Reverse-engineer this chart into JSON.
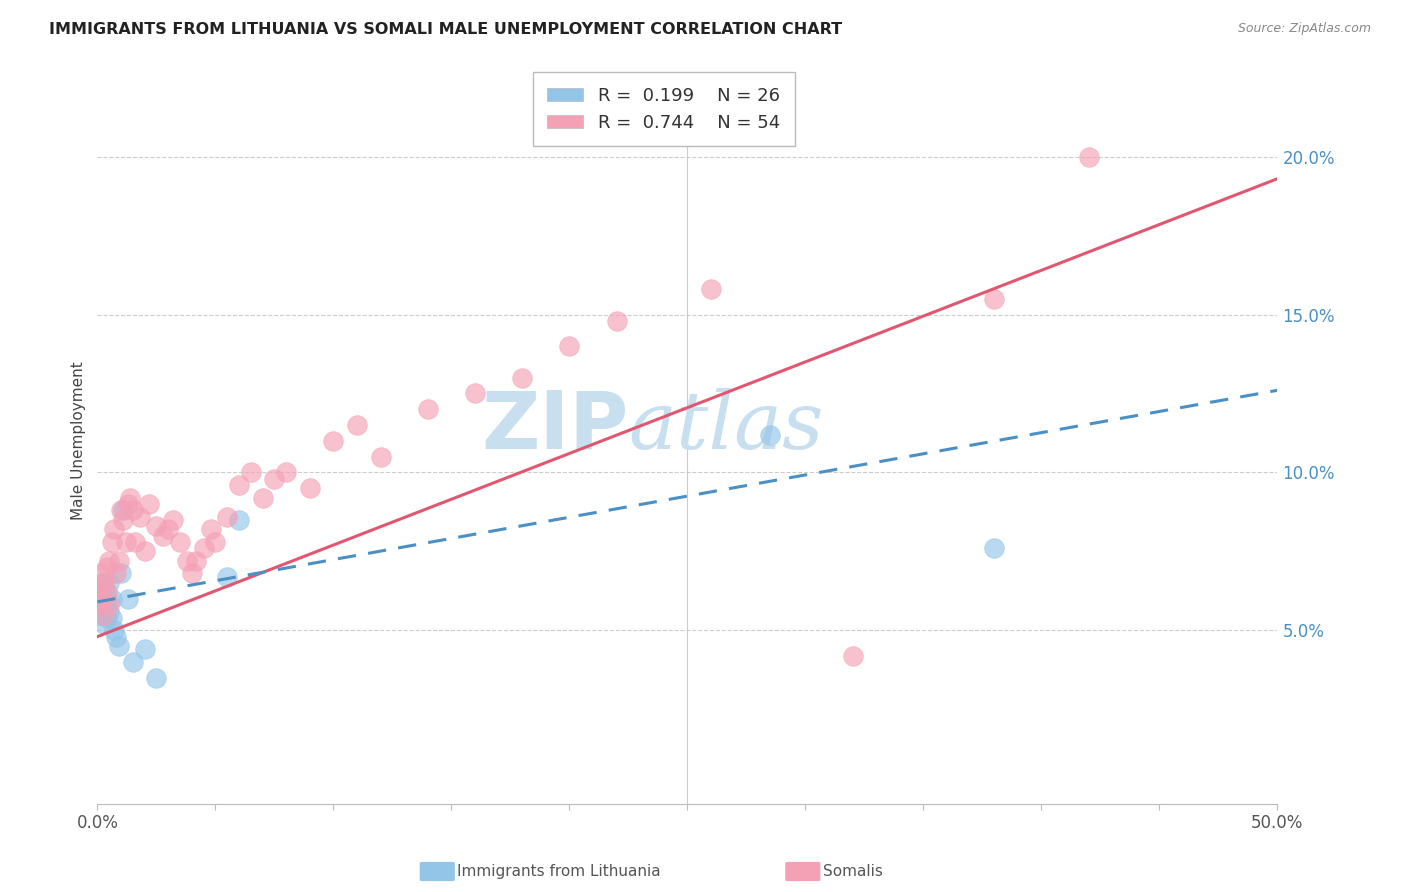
{
  "title": "IMMIGRANTS FROM LITHUANIA VS SOMALI MALE UNEMPLOYMENT CORRELATION CHART",
  "source": "Source: ZipAtlas.com",
  "ylabel": "Male Unemployment",
  "xlim": [
    0.0,
    0.5
  ],
  "ylim": [
    -0.005,
    0.225
  ],
  "yticks_right": [
    0.05,
    0.1,
    0.15,
    0.2
  ],
  "ytick_labels_right": [
    "5.0%",
    "10.0%",
    "15.0%",
    "20.0%"
  ],
  "legend_r1": "R =  0.199",
  "legend_n1": "N = 26",
  "legend_r2": "R =  0.744",
  "legend_n2": "N = 54",
  "color_blue": "#92C5E8",
  "color_pink": "#F4A0B5",
  "color_line_blue": "#4A90C4",
  "color_line_pink": "#E05870",
  "watermark_zip": "ZIP",
  "watermark_atlas": "atlas",
  "watermark_color": "#C8DFF0",
  "pink_line_x0": 0.0,
  "pink_line_y0": 0.048,
  "pink_line_x1": 0.5,
  "pink_line_y1": 0.193,
  "blue_line_x0": 0.0,
  "blue_line_y0": 0.059,
  "blue_line_x1": 0.5,
  "blue_line_y1": 0.126,
  "lithuania_x": [
    0.001,
    0.001,
    0.002,
    0.002,
    0.003,
    0.003,
    0.003,
    0.004,
    0.004,
    0.005,
    0.005,
    0.006,
    0.006,
    0.007,
    0.008,
    0.009,
    0.01,
    0.011,
    0.013,
    0.015,
    0.02,
    0.025,
    0.055,
    0.06,
    0.285,
    0.38
  ],
  "lithuania_y": [
    0.06,
    0.055,
    0.065,
    0.06,
    0.063,
    0.058,
    0.052,
    0.06,
    0.054,
    0.065,
    0.056,
    0.06,
    0.054,
    0.05,
    0.048,
    0.045,
    0.068,
    0.088,
    0.06,
    0.04,
    0.044,
    0.035,
    0.067,
    0.085,
    0.112,
    0.076
  ],
  "somali_x": [
    0.001,
    0.001,
    0.002,
    0.002,
    0.003,
    0.003,
    0.004,
    0.004,
    0.005,
    0.005,
    0.006,
    0.007,
    0.008,
    0.009,
    0.01,
    0.011,
    0.012,
    0.013,
    0.014,
    0.015,
    0.016,
    0.018,
    0.02,
    0.022,
    0.025,
    0.028,
    0.03,
    0.032,
    0.035,
    0.038,
    0.04,
    0.042,
    0.045,
    0.048,
    0.05,
    0.055,
    0.06,
    0.065,
    0.07,
    0.075,
    0.08,
    0.09,
    0.1,
    0.11,
    0.12,
    0.14,
    0.16,
    0.18,
    0.2,
    0.22,
    0.26,
    0.32,
    0.38,
    0.42
  ],
  "somali_y": [
    0.058,
    0.063,
    0.06,
    0.068,
    0.065,
    0.055,
    0.07,
    0.062,
    0.072,
    0.058,
    0.078,
    0.082,
    0.068,
    0.072,
    0.088,
    0.085,
    0.078,
    0.09,
    0.092,
    0.088,
    0.078,
    0.086,
    0.075,
    0.09,
    0.083,
    0.08,
    0.082,
    0.085,
    0.078,
    0.072,
    0.068,
    0.072,
    0.076,
    0.082,
    0.078,
    0.086,
    0.096,
    0.1,
    0.092,
    0.098,
    0.1,
    0.095,
    0.11,
    0.115,
    0.105,
    0.12,
    0.125,
    0.13,
    0.14,
    0.148,
    0.158,
    0.042,
    0.155,
    0.2
  ]
}
